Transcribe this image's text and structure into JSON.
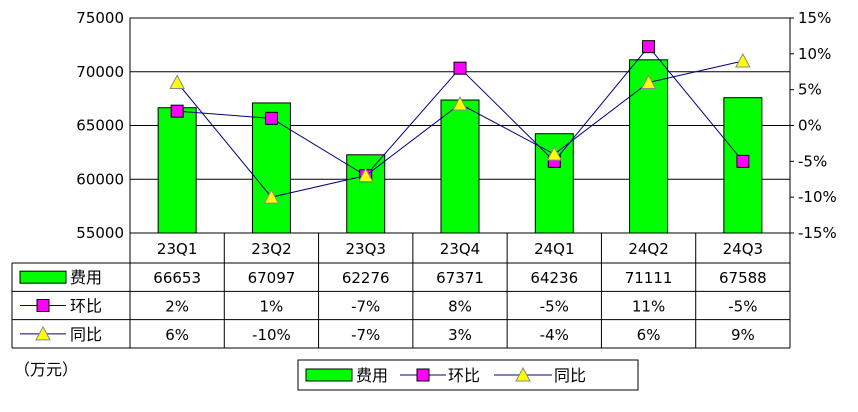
{
  "chart_data": {
    "type": "bar",
    "categories": [
      "23Q1",
      "23Q2",
      "23Q3",
      "23Q4",
      "24Q1",
      "24Q2",
      "24Q3"
    ],
    "series": [
      {
        "name": "费用",
        "type": "bar",
        "axis": "left",
        "color": "#00ff00",
        "values": [
          66653,
          67097,
          62276,
          67371,
          64236,
          71111,
          67588
        ]
      },
      {
        "name": "环比",
        "type": "line",
        "axis": "right",
        "color": "#ff00ff",
        "marker": "square",
        "values": [
          2,
          1,
          -7,
          8,
          -5,
          11,
          -5
        ]
      },
      {
        "name": "同比",
        "type": "line",
        "axis": "right",
        "color": "#ffff00",
        "marker": "triangle",
        "values": [
          6,
          -10,
          -7,
          3,
          -4,
          6,
          9
        ]
      }
    ],
    "left_axis": {
      "ylim": [
        55000,
        75000
      ],
      "ticks": [
        "55000",
        "60000",
        "65000",
        "70000",
        "75000"
      ]
    },
    "right_axis": {
      "ylim": [
        -15,
        15
      ],
      "ticks": [
        "-15%",
        "-10%",
        "-5%",
        "0%",
        "5%",
        "10%",
        "15%"
      ]
    },
    "unit_label": "（万元）",
    "grid": true,
    "legend": {
      "placement": "bottom",
      "items": [
        "费用",
        "环比",
        "同比"
      ]
    },
    "table": {
      "rows": [
        {
          "label": "费用",
          "cells": [
            "66653",
            "67097",
            "62276",
            "67371",
            "64236",
            "71111",
            "67588"
          ]
        },
        {
          "label": "环比",
          "cells": [
            "2%",
            "1%",
            "-7%",
            "8%",
            "-5%",
            "11%",
            "-5%"
          ]
        },
        {
          "label": "同比",
          "cells": [
            "6%",
            "-10%",
            "-7%",
            "3%",
            "-4%",
            "6%",
            "9%"
          ]
        }
      ]
    }
  }
}
